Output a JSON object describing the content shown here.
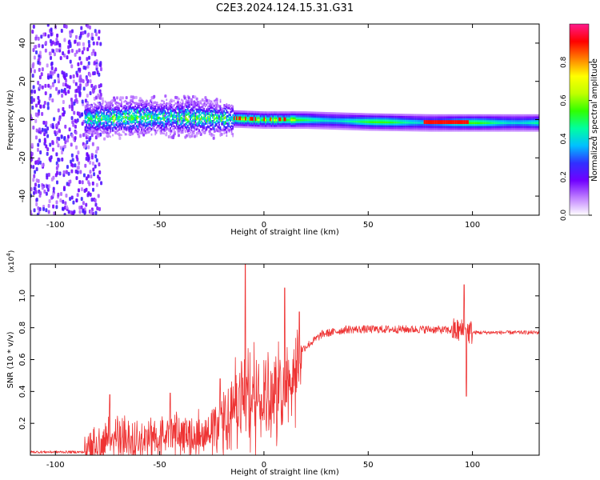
{
  "title": "C2E3.2024.124.15.31.G31",
  "chart_data": [
    {
      "type": "heatmap",
      "xlabel": "Height of straight line (km)",
      "ylabel": "Frequency (Hz)",
      "xlim": [
        -112,
        132
      ],
      "ylim": [
        -50,
        50
      ],
      "xticks": [
        -100,
        -50,
        0,
        50,
        100
      ],
      "yticks": [
        -40,
        -20,
        0,
        20,
        40
      ],
      "xtick_labels": [
        "-100",
        "-50",
        "0",
        "50",
        "100"
      ],
      "ytick_labels": [
        "-40",
        "-20",
        "0",
        "20",
        "40"
      ],
      "colorbar": {
        "label": "Normalized spectral amplitude",
        "range": [
          0,
          1
        ],
        "ticks": [
          0.0,
          0.2,
          0.4,
          0.6,
          0.8
        ],
        "tick_labels": [
          "0.0",
          "0.2",
          "0.4",
          "0.6",
          "0.8"
        ],
        "colors": [
          "#ffffff",
          "#c080ff",
          "#7000ff",
          "#3030ff",
          "#00c0ff",
          "#00ffa0",
          "#30ff00",
          "#c0ff00",
          "#ffff00",
          "#ff8000",
          "#ff0000",
          "#ff1a8c"
        ]
      },
      "band_center_hz": [
        {
          "x": -85,
          "y": 0.5
        },
        {
          "x": -60,
          "y": 1.5
        },
        {
          "x": -40,
          "y": 1.5
        },
        {
          "x": -20,
          "y": 0.8
        },
        {
          "x": 0,
          "y": 0
        },
        {
          "x": 20,
          "y": 0
        },
        {
          "x": 50,
          "y": -1
        },
        {
          "x": 80,
          "y": -1.5
        },
        {
          "x": 100,
          "y": -1.5
        },
        {
          "x": 132,
          "y": -1.5
        }
      ]
    },
    {
      "type": "line",
      "xlabel": "Height of straight line (km)",
      "ylabel": "SNR (10 * v/v)",
      "y_multiplier": "(x10",
      "y_multiplier_exp": "4",
      "y_multiplier_close": ")",
      "xlim": [
        -112,
        132
      ],
      "ylim": [
        0,
        1.2
      ],
      "xticks": [
        -100,
        -50,
        0,
        50,
        100
      ],
      "yticks": [
        0.2,
        0.4,
        0.6,
        0.8,
        1.0
      ],
      "xtick_labels": [
        "-100",
        "-50",
        "0",
        "50",
        "100"
      ],
      "ytick_labels": [
        "0.2",
        "0.4",
        "0.6",
        "0.8",
        "1.0"
      ],
      "color": "#ee3333",
      "baseline": [
        {
          "x": -112,
          "y": 0.02
        },
        {
          "x": -85,
          "y": 0.02
        },
        {
          "x": -78,
          "y": 0.08
        },
        {
          "x": -72,
          "y": 0.12
        },
        {
          "x": -50,
          "y": 0.13
        },
        {
          "x": -30,
          "y": 0.15
        },
        {
          "x": -22,
          "y": 0.2
        },
        {
          "x": -18,
          "y": 0.28
        },
        {
          "x": -10,
          "y": 0.38
        },
        {
          "x": 0,
          "y": 0.42
        },
        {
          "x": 8,
          "y": 0.42
        },
        {
          "x": 12,
          "y": 0.5
        },
        {
          "x": 18,
          "y": 0.66
        },
        {
          "x": 28,
          "y": 0.76
        },
        {
          "x": 40,
          "y": 0.79
        },
        {
          "x": 80,
          "y": 0.79
        },
        {
          "x": 95,
          "y": 0.78
        },
        {
          "x": 100,
          "y": 0.77
        },
        {
          "x": 132,
          "y": 0.77
        }
      ],
      "peaks": [
        {
          "x": -74,
          "y": 0.38
        },
        {
          "x": -45,
          "y": 0.39
        },
        {
          "x": -21,
          "y": 0.48
        },
        {
          "x": -9,
          "y": 1.22
        },
        {
          "x": 10,
          "y": 1.05
        },
        {
          "x": 17,
          "y": 0.9
        },
        {
          "x": 96,
          "y": 1.07
        },
        {
          "x": 97,
          "y": 0.37
        }
      ]
    }
  ]
}
